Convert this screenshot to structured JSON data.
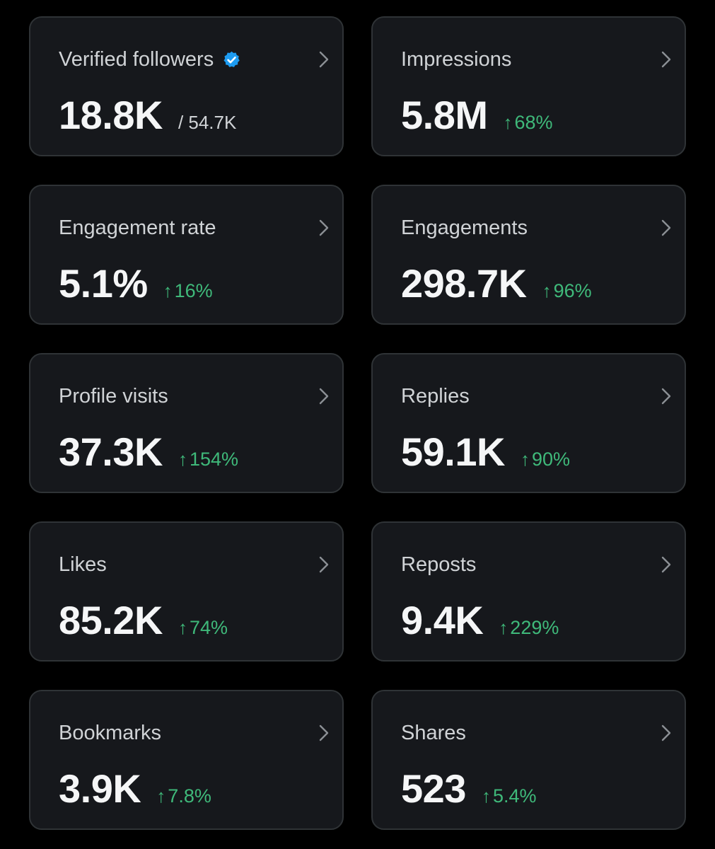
{
  "colors": {
    "background": "#000000",
    "card": "#16181c",
    "border": "#2f3336",
    "positive": "#3fb97a",
    "verified": "#1d9bf0"
  },
  "cards": [
    {
      "title": "Verified followers",
      "value": "18.8K",
      "secondary": "/ 54.7K",
      "verified_icon": "verified-badge-icon"
    },
    {
      "title": "Impressions",
      "value": "5.8M",
      "change": "68%"
    },
    {
      "title": "Engagement rate",
      "value": "5.1%",
      "change": "16%"
    },
    {
      "title": "Engagements",
      "value": "298.7K",
      "change": "96%"
    },
    {
      "title": "Profile visits",
      "value": "37.3K",
      "change": "154%"
    },
    {
      "title": "Replies",
      "value": "59.1K",
      "change": "90%"
    },
    {
      "title": "Likes",
      "value": "85.2K",
      "change": "74%"
    },
    {
      "title": "Reposts",
      "value": "9.4K",
      "change": "229%"
    },
    {
      "title": "Bookmarks",
      "value": "3.9K",
      "change": "7.8%"
    },
    {
      "title": "Shares",
      "value": "523",
      "change": "5.4%"
    }
  ],
  "icons": {
    "chevron": "chevron-right-icon",
    "arrow": "arrow-up-icon"
  }
}
